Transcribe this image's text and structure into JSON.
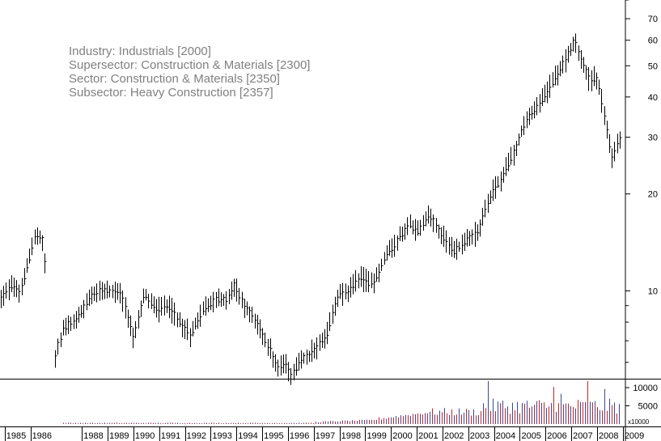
{
  "chart_data": {
    "type": "ohlc",
    "annotations": [
      "Industry: Industrials [2000]",
      "Supersector: Construction & Materials [2300]",
      "Sector: Construction & Materials [2350]",
      "Subsector: Heavy Construction [2357]"
    ],
    "y_scale": "log",
    "y_ticks": [
      10,
      20,
      30,
      40,
      50,
      60,
      70
    ],
    "y_range": [
      5.4,
      80
    ],
    "x_ticks": [
      "1985",
      "1986",
      "1988",
      "1989",
      "1990",
      "1991",
      "1992",
      "1993",
      "1994",
      "1995",
      "1996",
      "1997",
      "1998",
      "1999",
      "2000",
      "2001",
      "2002",
      "2003",
      "2004",
      "2005",
      "2006",
      "2007",
      "2008",
      "2009"
    ],
    "x_range": [
      1984.82,
      2009.1
    ],
    "price_anchors": [
      [
        1984.85,
        9.5
      ],
      [
        1985.3,
        10.4
      ],
      [
        1985.6,
        10.0
      ],
      [
        1985.9,
        12.2
      ],
      [
        1986.2,
        15.2
      ],
      [
        1986.5,
        14.3
      ],
      [
        1986.9,
        5.5
      ],
      [
        1987.0,
        6.6
      ],
      [
        1987.3,
        7.7
      ],
      [
        1987.8,
        8.2
      ],
      [
        1988.3,
        9.6
      ],
      [
        1988.8,
        10.1
      ],
      [
        1989.5,
        9.9
      ],
      [
        1990.0,
        7.1
      ],
      [
        1990.4,
        9.8
      ],
      [
        1990.9,
        8.7
      ],
      [
        1991.3,
        9.0
      ],
      [
        1991.8,
        8.0
      ],
      [
        1992.2,
        7.3
      ],
      [
        1992.7,
        8.8
      ],
      [
        1993.2,
        9.4
      ],
      [
        1993.6,
        9.4
      ],
      [
        1993.9,
        10.4
      ],
      [
        1994.3,
        9.0
      ],
      [
        1994.8,
        7.9
      ],
      [
        1995.2,
        6.8
      ],
      [
        1995.6,
        5.8
      ],
      [
        1995.9,
        5.9
      ],
      [
        1996.1,
        5.4
      ],
      [
        1996.5,
        6.1
      ],
      [
        1997.0,
        6.5
      ],
      [
        1997.5,
        7.3
      ],
      [
        1997.9,
        9.6
      ],
      [
        1998.3,
        10.0
      ],
      [
        1998.8,
        11.0
      ],
      [
        1999.3,
        10.4
      ],
      [
        1999.7,
        12.5
      ],
      [
        2000.2,
        14.2
      ],
      [
        2000.7,
        16.2
      ],
      [
        2001.0,
        15.2
      ],
      [
        2001.5,
        17.2
      ],
      [
        2001.9,
        15.1
      ],
      [
        2002.4,
        13.2
      ],
      [
        2002.9,
        14.3
      ],
      [
        2003.4,
        15.4
      ],
      [
        2003.8,
        19.5
      ],
      [
        2004.3,
        22.5
      ],
      [
        2004.8,
        27.5
      ],
      [
        2005.3,
        35.0
      ],
      [
        2005.8,
        38.5
      ],
      [
        2006.3,
        45.0
      ],
      [
        2006.8,
        53.0
      ],
      [
        2007.1,
        60.0
      ],
      [
        2007.4,
        52.0
      ],
      [
        2007.7,
        45.0
      ],
      [
        2008.0,
        46.0
      ],
      [
        2008.3,
        34.0
      ],
      [
        2008.55,
        26.0
      ],
      [
        2008.8,
        29.0
      ],
      [
        2009.05,
        32.0
      ]
    ],
    "volume": {
      "axis_labels": [
        "10000",
        "5000"
      ],
      "legend": "x10000",
      "y_range": [
        0,
        12000
      ],
      "series_colors": [
        "#3a4a9a",
        "#cc2222"
      ],
      "spikes": [
        [
          2003.75,
          11800
        ],
        [
          2007.6,
          11800
        ],
        [
          2006.3,
          10200
        ],
        [
          2008.3,
          9600
        ],
        [
          2004.0,
          8500
        ],
        [
          2006.6,
          8300
        ]
      ]
    }
  },
  "colors": {
    "price": "#000000",
    "annotation_text": "#808080",
    "axis": "#000000",
    "vol_blue": "#3a4a9a",
    "vol_red": "#cc2222"
  }
}
